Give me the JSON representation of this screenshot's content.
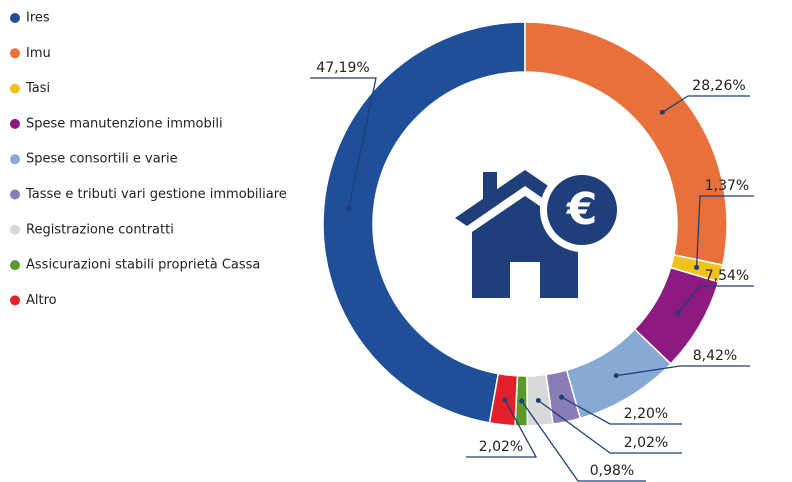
{
  "chart_data": {
    "type": "donut",
    "categories": [
      "Ires",
      "Imu",
      "Tasi",
      "Spese manutenzione immobili",
      "Spese consortili e varie",
      "Tasse e tributi vari gestione immobiliare",
      "Registrazione contratti",
      "Assicurazioni stabili proprietà Cassa",
      "Altro"
    ],
    "values": [
      47.19,
      28.26,
      1.37,
      7.54,
      8.42,
      2.2,
      2.02,
      0.98,
      2.02
    ],
    "value_labels": [
      "47,19%",
      "28,26%",
      "1,37%",
      "7,54%",
      "8,42%",
      "2,20%",
      "2,02%",
      "0,98%",
      "2,02%"
    ],
    "colors": [
      "#1e4f98",
      "#e8703a",
      "#f1c21b",
      "#8c1a80",
      "#87aad5",
      "#8a7cb6",
      "#d9d9d9",
      "#5a9a2c",
      "#e2202a"
    ],
    "legend": "left"
  }
}
